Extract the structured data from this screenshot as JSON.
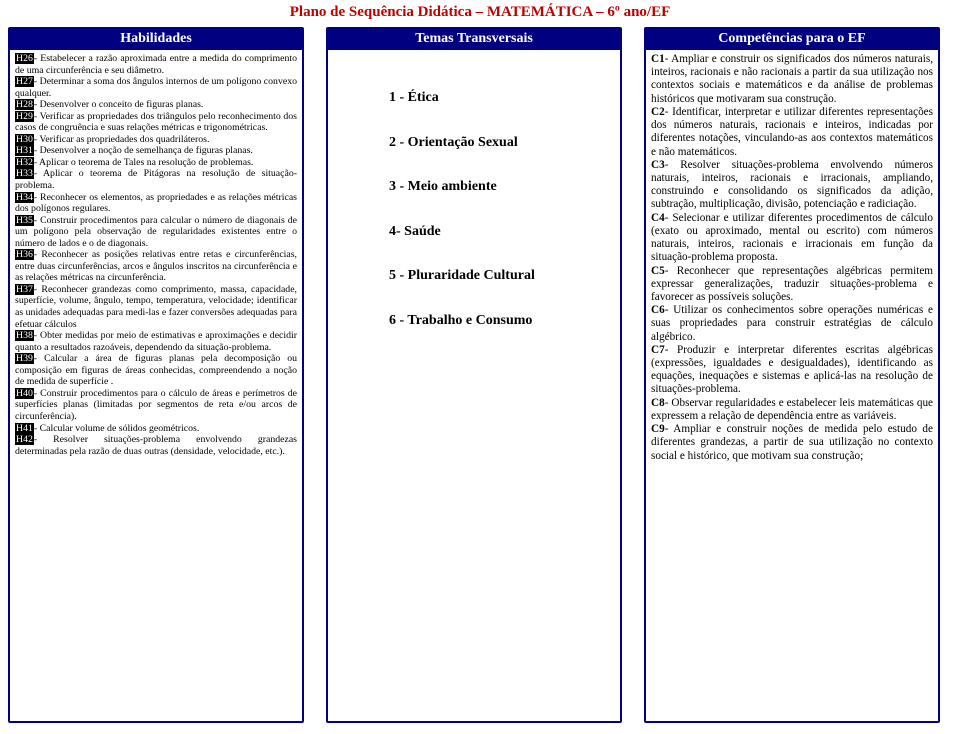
{
  "title": "Plano de Sequência Didática – MATEMÁTICA – 6º ano/EF",
  "headers": {
    "col1": "Habilidades",
    "col2": "Temas Transversais",
    "col3": "Competências para o EF"
  },
  "habilidades": [
    {
      "code": "H26",
      "text": "- Estabelecer a razão aproximada entre a medida do comprimento de uma circunferência e seu diâmetro."
    },
    {
      "code": "H27",
      "text": "- Determinar a soma dos ângulos internos de um polígono convexo qualquer."
    },
    {
      "code": "H28",
      "text": "- Desenvolver o conceito de figuras planas."
    },
    {
      "code": "H29",
      "text": "- Verificar as propriedades dos triângulos pelo reconhecimento dos casos de congruência e suas relações métricas e trigonométricas."
    },
    {
      "code": "H30",
      "text": "- Verificar as propriedades dos quadriláteros."
    },
    {
      "code": "H31",
      "text": "- Desenvolver a noção de semelhança de figuras planas."
    },
    {
      "code": "H32",
      "text": "- Aplicar o teorema de Tales na resolução de problemas."
    },
    {
      "code": "H33",
      "text": "- Aplicar o teorema de Pitágoras na resolução de situação-problema."
    },
    {
      "code": "H34",
      "text": "- Reconhecer os elementos, as propriedades e as relações métricas dos polígonos regulares."
    },
    {
      "code": "H35",
      "text": "- Construir procedimentos para calcular o número de diagonais de um polígono pela observação de regularidades existentes entre o número de lados e o de diagonais."
    },
    {
      "code": "H36",
      "text": "- Reconhecer as posições relativas entre retas e circunferências, entre duas circunferências, arcos e ângulos inscritos na circunferência e as relações métricas na circunferência."
    },
    {
      "code": "H37",
      "text": "- Reconhecer grandezas como comprimento, massa, capacidade, superfície, volume, ângulo, tempo, temperatura, velocidade; identificar as unidades adequadas para medi-las e fazer conversões adequadas para efetuar cálculos"
    },
    {
      "code": "H38",
      "text": "- Obter medidas por meio de estimativas e aproximações e decidir quanto a resultados razoáveis, dependendo da situação-problema."
    },
    {
      "code": "H39",
      "text": "- Calcular a área de figuras planas pela decomposição ou composição em figuras de áreas conhecidas, compreendendo a noção de medida de superfície ."
    },
    {
      "code": "H40",
      "text": "- Construir procedimentos para o cálculo de áreas e perímetros de superfícies planas (limitadas por segmentos de reta e/ou arcos de circunferência)."
    },
    {
      "code": "H41",
      "text": "- Calcular volume de sólidos geométricos."
    },
    {
      "code": "H42",
      "text": "- Resolver situações-problema envolvendo grandezas determinadas pela razão de duas outras (densidade, velocidade, etc.)."
    }
  ],
  "temas": [
    "1 - Ética",
    "2 - Orientação Sexual",
    "3 - Meio ambiente",
    "4- Saúde",
    "5 - Pluraridade Cultural",
    "6 - Trabalho e Consumo"
  ],
  "competencias": [
    {
      "code": "C1",
      "text": "- Ampliar e construir os significados dos números naturais, inteiros, racionais e não racionais a partir da sua utilização nos contextos sociais e matemáticos e da análise de problemas históricos que motivaram sua construção."
    },
    {
      "code": "C2",
      "text": "- Identificar, interpretar e utilizar diferentes representações dos números naturais, racionais e inteiros, indicadas por diferentes notações, vinculando-as aos contextos matemáticos e não matemáticos."
    },
    {
      "code": "C3",
      "text": "- Resolver situações-problema envolvendo números naturais, inteiros, racionais e irracionais, ampliando, construindo e consolidando os significados da adição, subtração, multiplicação, divisão, potenciação e radiciação."
    },
    {
      "code": "C4",
      "text": "- Selecionar e utilizar diferentes procedimentos de cálculo (exato ou aproximado, mental ou escrito) com números naturais, inteiros, racionais e irracionais em função da situação-problema proposta."
    },
    {
      "code": "C5",
      "text": "- Reconhecer que representações algébricas permitem expressar generalizações, traduzir situações-problema e favorecer as possíveis soluções."
    },
    {
      "code": "C6",
      "text": "- Utilizar os conhecimentos sobre operações numéricas e suas propriedades para construir estratégias de cálculo algébrico."
    },
    {
      "code": "C7",
      "text": "- Produzir e interpretar diferentes escritas algébricas (expressões, igualdades e desigualdades), identificando as equações, inequações e sistemas e aplicá-las na resolução de situações-problema."
    },
    {
      "code": "C8",
      "text": "- Observar regularidades e estabelecer leis matemáticas que expressem a relação de dependência entre as variáveis."
    },
    {
      "code": "C9",
      "text": "- Ampliar e construir noções de medida pelo estudo de diferentes grandezas, a partir de sua utilização no contexto social e histórico, que motivam sua construção;"
    }
  ],
  "colors": {
    "title": "#c00000",
    "border": "#000080",
    "header_bg": "#000080",
    "header_text": "#ffffff",
    "code_bg": "#000000"
  }
}
